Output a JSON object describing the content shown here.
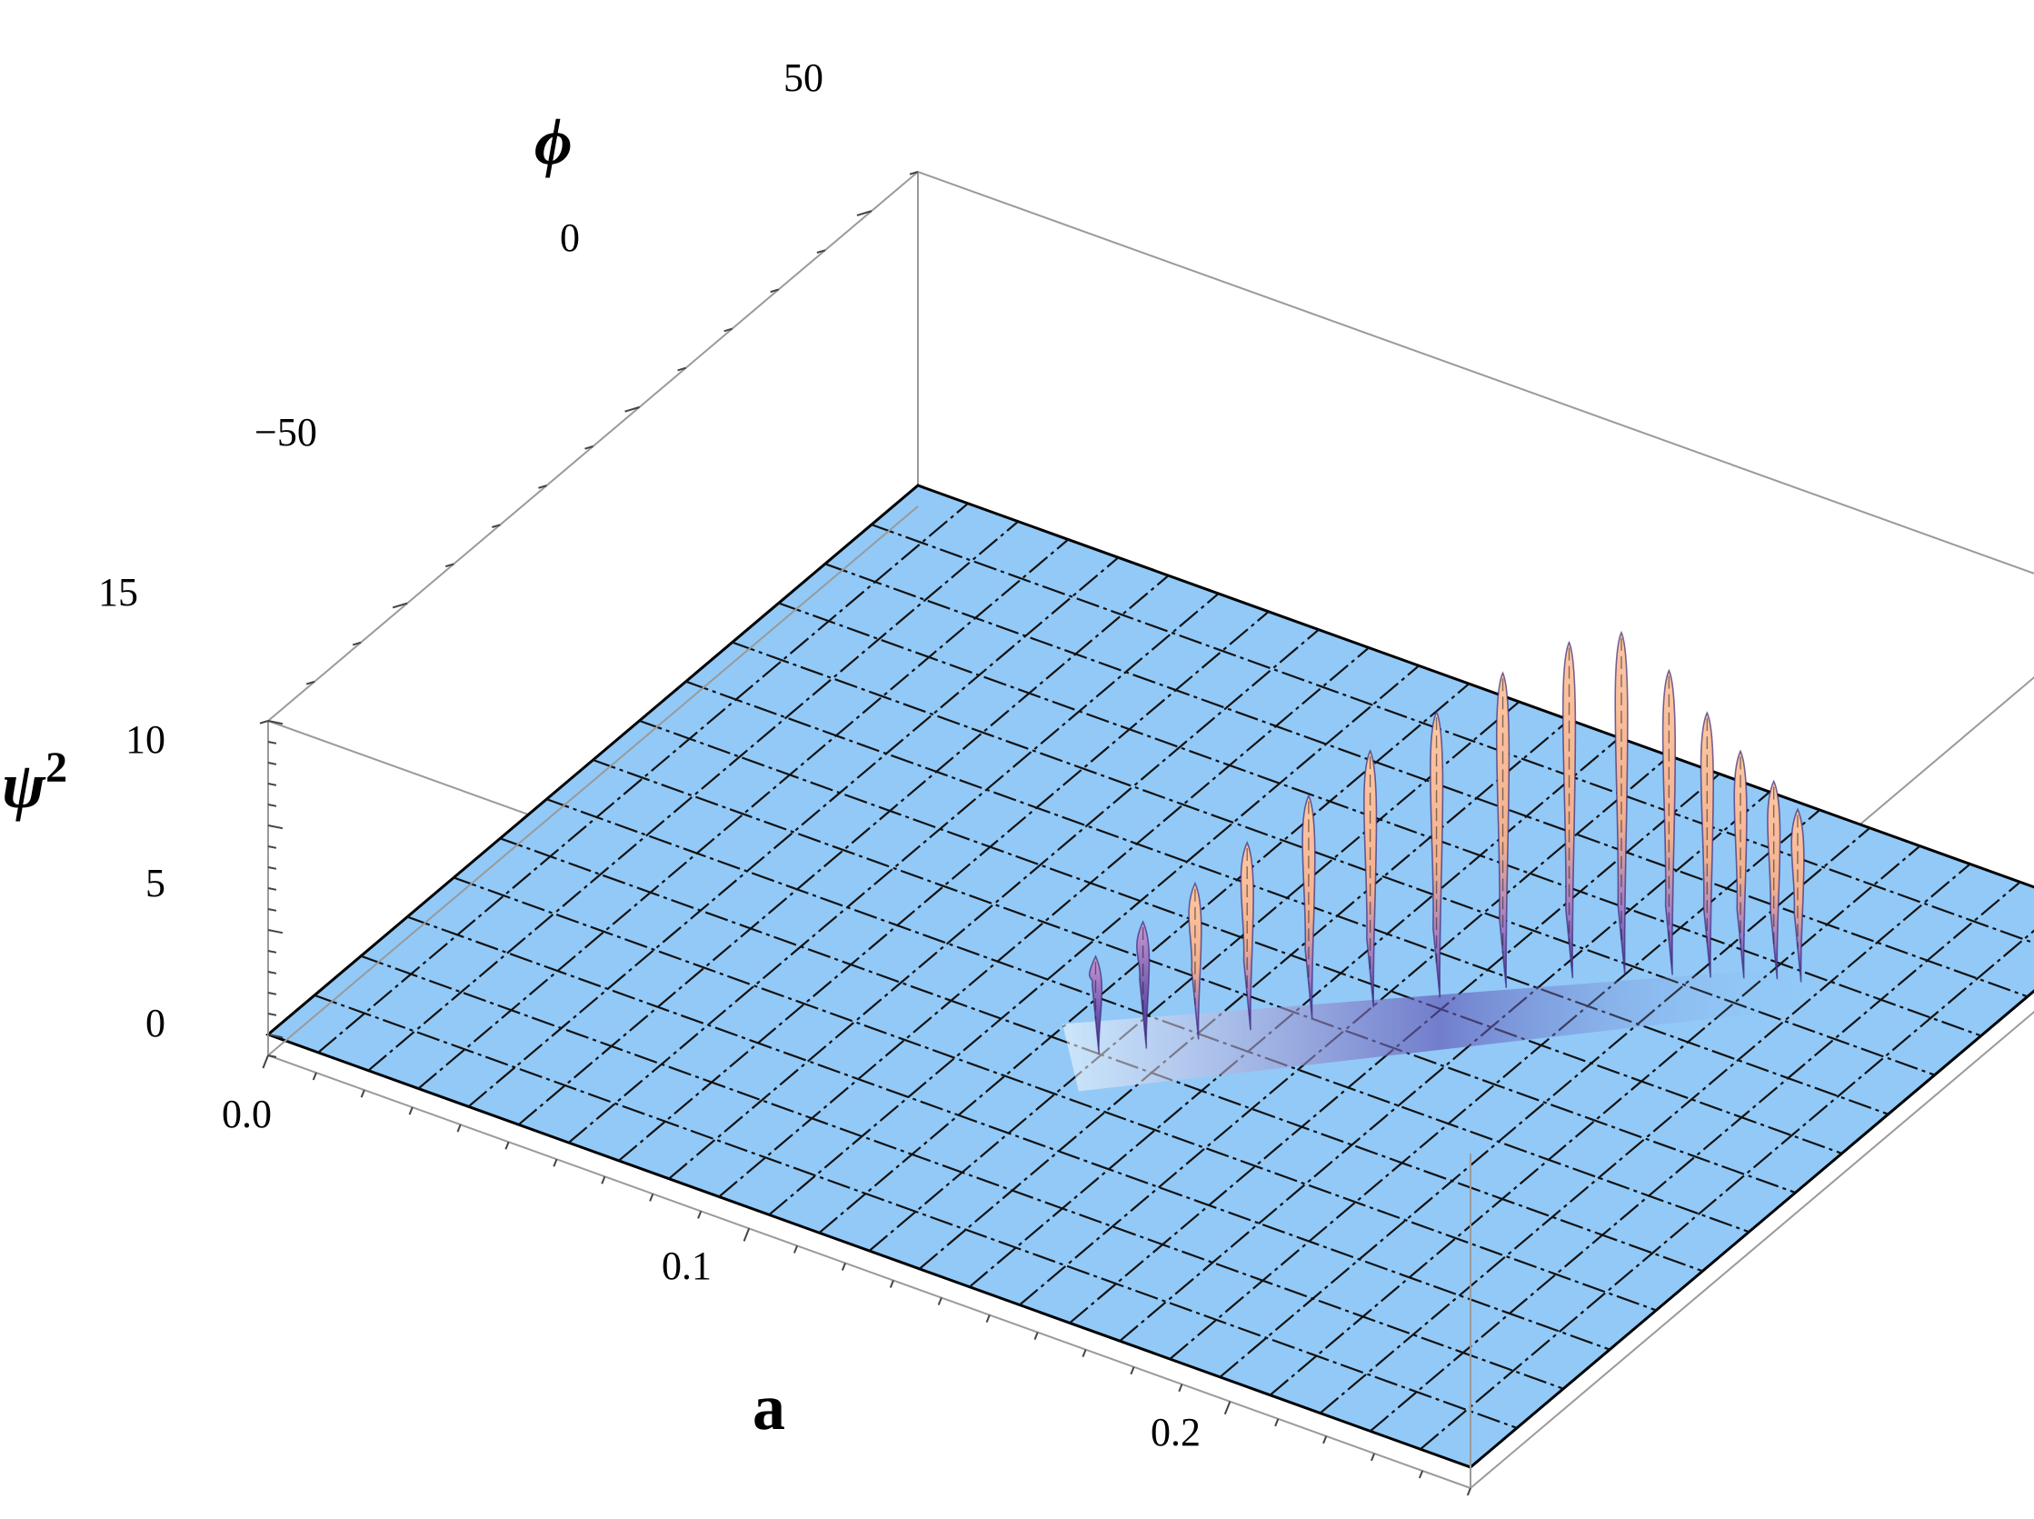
{
  "chart_data": {
    "type": "surface3d",
    "title": "",
    "axes": {
      "x": {
        "label": "a",
        "range": [
          0.0,
          0.25
        ],
        "ticks": [
          0.0,
          0.1,
          0.2
        ],
        "tick_labels": [
          "0.0",
          "0.1",
          "0.2"
        ]
      },
      "y": {
        "label": "ϕ",
        "range": [
          -80,
          60
        ],
        "ticks": [
          -50,
          0,
          50
        ],
        "tick_labels": [
          "−50",
          "0",
          "50"
        ]
      },
      "z": {
        "label": "ψ",
        "label_superscript": "2",
        "range": [
          -1,
          15
        ],
        "ticks": [
          0,
          5,
          10,
          15
        ],
        "tick_labels": [
          "0",
          "5",
          "10",
          "15"
        ]
      }
    },
    "mesh": true,
    "colors": {
      "plane": "#92c9f7",
      "peaks": "#f7b58c",
      "shadow": "#5a4aa0",
      "box": "#9a9a9a"
    },
    "ridge_peaks": [
      {
        "a": 0.118,
        "phi": -24,
        "z": 3.0
      },
      {
        "a": 0.124,
        "phi": -20,
        "z": 4.4
      },
      {
        "a": 0.13,
        "phi": -15,
        "z": 5.8
      },
      {
        "a": 0.136,
        "phi": -10,
        "z": 7.3
      },
      {
        "a": 0.143,
        "phi": -4,
        "z": 9.0
      },
      {
        "a": 0.15,
        "phi": 2,
        "z": 10.6
      },
      {
        "a": 0.158,
        "phi": 8,
        "z": 12.0
      },
      {
        "a": 0.166,
        "phi": 14,
        "z": 13.4
      },
      {
        "a": 0.174,
        "phi": 20,
        "z": 14.4
      },
      {
        "a": 0.181,
        "phi": 24,
        "z": 14.7
      },
      {
        "a": 0.188,
        "phi": 27,
        "z": 12.9
      },
      {
        "a": 0.194,
        "phi": 29,
        "z": 11.0
      },
      {
        "a": 0.199,
        "phi": 31,
        "z": 9.2
      },
      {
        "a": 0.204,
        "phi": 33,
        "z": 7.8
      },
      {
        "a": 0.208,
        "phi": 34,
        "z": 6.6
      }
    ]
  }
}
